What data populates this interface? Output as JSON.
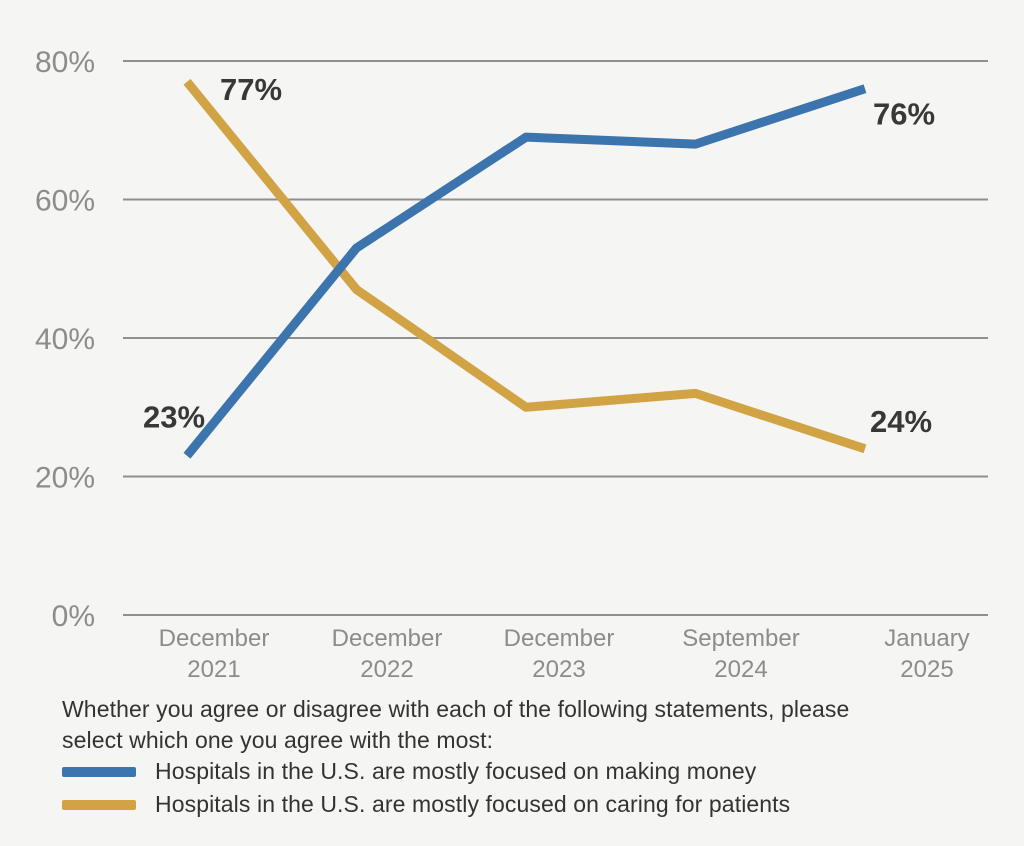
{
  "chart_data": {
    "type": "line",
    "x_labels": [
      [
        "December",
        "2021"
      ],
      [
        "December",
        "2022"
      ],
      [
        "December",
        "2023"
      ],
      [
        "September",
        "2024"
      ],
      [
        "January",
        "2025"
      ]
    ],
    "series": [
      {
        "name": "Hospitals in the U.S. are mostly focused on making money",
        "color": "#3C74AE",
        "values": [
          23,
          53,
          69,
          68,
          76
        ]
      },
      {
        "name": "Hospitals in the U.S. are mostly focused on caring for patients",
        "color": "#D1A345",
        "values": [
          77,
          47,
          30,
          32,
          24
        ]
      }
    ],
    "ylim": [
      0,
      80
    ],
    "yticks": [
      0,
      20,
      40,
      60,
      80
    ],
    "ytick_format": "{v}%",
    "grid": "horizontal",
    "legend_position": "bottom",
    "annotations": [
      {
        "text": "77%",
        "series": 1,
        "point": 0
      },
      {
        "text": "23%",
        "series": 0,
        "point": 0
      },
      {
        "text": "76%",
        "series": 0,
        "point": 4
      },
      {
        "text": "24%",
        "series": 1,
        "point": 4
      }
    ]
  },
  "question": {
    "line1": "Whether you agree or disagree with each of the following statements, please",
    "line2": "select which one you agree with the most:"
  },
  "colors": {
    "background": "#f5f5f3",
    "grid": "#8f8f8f",
    "tick": "#8c8c8c",
    "annotation": "#383838",
    "text": "#333333"
  }
}
